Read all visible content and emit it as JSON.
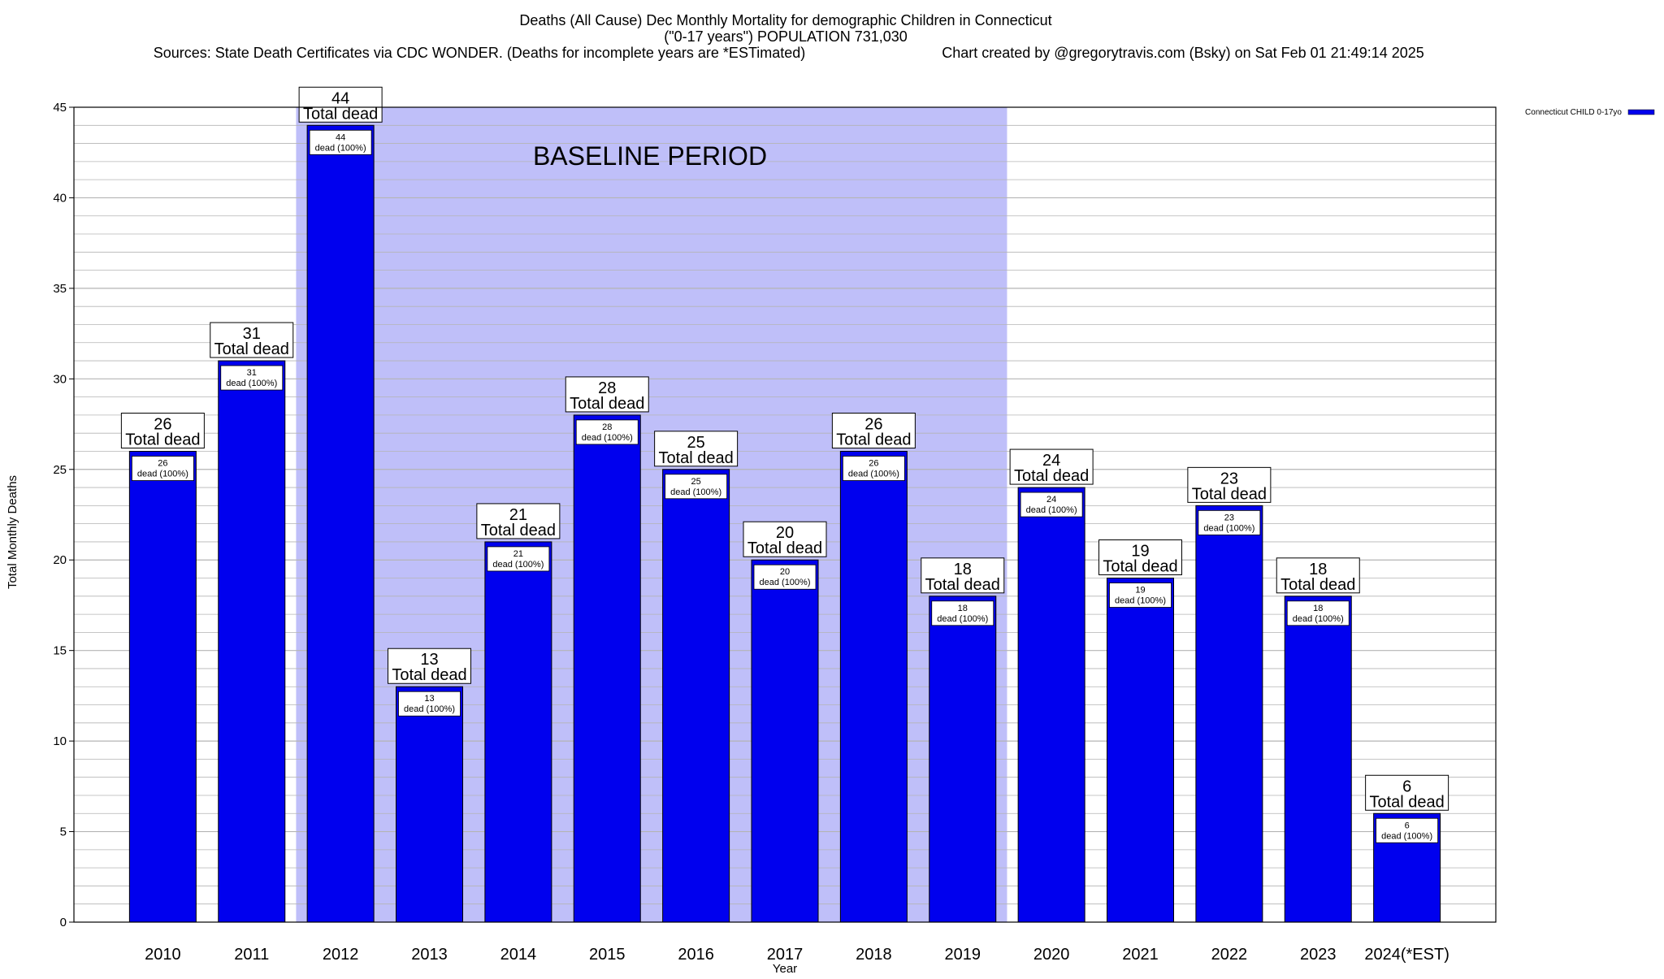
{
  "page": {
    "title_line1": "Deaths (All Cause) Dec Monthly Mortality for demographic Children in Connecticut",
    "title_line2": "(\"0-17 years\") POPULATION 731,030",
    "sources": "Sources: State Death Certificates via CDC WONDER. (Deaths for incomplete years are *ESTimated)",
    "credit": "Chart created by @gregorytravis.com (Bsky) on Sat Feb 01 21:49:14 2025",
    "baseline_label": "BASELINE PERIOD",
    "total_suffix": "Total dead",
    "inner_suffix": "dead (100%)"
  },
  "colors": {
    "bar": "#0000ee",
    "bar_outline": "#000000",
    "baseline_shade": "#bfbff9",
    "grid": "#b4b4b4"
  },
  "chart_data": {
    "type": "bar",
    "xlabel": "Year",
    "ylabel": "Total Monthly Deaths",
    "ylim": [
      0,
      45
    ],
    "yticks": [
      0,
      5,
      10,
      15,
      20,
      25,
      30,
      35,
      40,
      45
    ],
    "minor_step": 1,
    "grid": true,
    "legend_position": "top-right",
    "categories": [
      "2010",
      "2011",
      "2012",
      "2013",
      "2014",
      "2015",
      "2016",
      "2017",
      "2018",
      "2019",
      "2020",
      "2021",
      "2022",
      "2023",
      "2024(*EST)"
    ],
    "series": [
      {
        "name": "Connecticut CHILD 0-17yo",
        "values": [
          26,
          31,
          44,
          13,
          21,
          28,
          25,
          20,
          26,
          18,
          24,
          19,
          23,
          18,
          6
        ]
      }
    ],
    "baseline_range": [
      "2012",
      "2019"
    ]
  }
}
